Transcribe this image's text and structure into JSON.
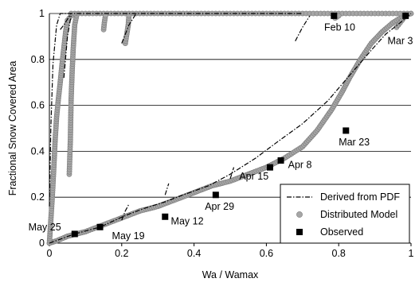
{
  "chart_data": {
    "type": "scatter",
    "xlabel": "Wa / Wamax",
    "ylabel": "Fractional Snow Covered Area",
    "xlim": [
      0,
      1
    ],
    "ylim": [
      0,
      1
    ],
    "x_ticks": [
      "0",
      "0.2",
      "0.4",
      "0.6",
      "0.8",
      "1"
    ],
    "y_ticks": [
      "0",
      "0.2",
      "0.4",
      "0.6",
      "0.8",
      "1"
    ],
    "grid": "horizontal",
    "legend_position": "bottom-right",
    "series": [
      {
        "name": "Derived from PDF",
        "style": "dash-dot line",
        "color": "#000000",
        "segments": [
          [
            [
              0,
              0.16
            ],
            [
              0.004,
              0.5
            ],
            [
              0.01,
              0.78
            ],
            [
              0.02,
              0.95
            ],
            [
              0.03,
              1.0
            ],
            [
              0.7,
              1.0
            ]
          ],
          [
            [
              0.03,
              0.93
            ],
            [
              0.04,
              0.95
            ],
            [
              0.06,
              1.0
            ]
          ],
          [
            [
              0.04,
              0.72
            ],
            [
              0.05,
              0.9
            ],
            [
              0.06,
              0.99
            ]
          ],
          [
            [
              0.2,
              0.87
            ],
            [
              0.22,
              0.95
            ],
            [
              0.24,
              1.0
            ]
          ],
          [
            [
              0.68,
              0.88
            ],
            [
              0.7,
              0.94
            ],
            [
              0.72,
              0.99
            ]
          ],
          [
            [
              0.0,
              0.0
            ],
            [
              0.07,
              0.04
            ],
            [
              0.14,
              0.07
            ],
            [
              0.21,
              0.12
            ],
            [
              0.26,
              0.15
            ],
            [
              0.32,
              0.18
            ],
            [
              0.37,
              0.21
            ],
            [
              0.44,
              0.25
            ],
            [
              0.5,
              0.3
            ],
            [
              0.57,
              0.37
            ],
            [
              0.63,
              0.44
            ],
            [
              0.7,
              0.52
            ],
            [
              0.77,
              0.62
            ],
            [
              0.83,
              0.73
            ],
            [
              0.89,
              0.84
            ],
            [
              0.93,
              0.91
            ],
            [
              0.97,
              0.96
            ],
            [
              1.0,
              1.0
            ]
          ],
          [
            [
              0.2,
              0.1
            ],
            [
              0.21,
              0.14
            ],
            [
              0.22,
              0.17
            ]
          ],
          [
            [
              0.32,
              0.21
            ],
            [
              0.33,
              0.26
            ]
          ],
          [
            [
              0.5,
              0.28
            ],
            [
              0.51,
              0.33
            ]
          ]
        ]
      },
      {
        "name": "Distributed Model",
        "style": "gray circles",
        "color": "#a6a6a6",
        "curves": {
          "main": [
            [
              0,
              0
            ],
            [
              0.02,
              0.01
            ],
            [
              0.05,
              0.03
            ],
            [
              0.1,
              0.05
            ],
            [
              0.15,
              0.08
            ],
            [
              0.2,
              0.11
            ],
            [
              0.25,
              0.14
            ],
            [
              0.3,
              0.16
            ],
            [
              0.35,
              0.19
            ],
            [
              0.4,
              0.22
            ],
            [
              0.45,
              0.25
            ],
            [
              0.5,
              0.27
            ],
            [
              0.55,
              0.3
            ],
            [
              0.6,
              0.33
            ],
            [
              0.65,
              0.37
            ],
            [
              0.7,
              0.42
            ],
            [
              0.74,
              0.49
            ],
            [
              0.78,
              0.58
            ],
            [
              0.81,
              0.66
            ],
            [
              0.83,
              0.72
            ],
            [
              0.86,
              0.8
            ],
            [
              0.89,
              0.87
            ],
            [
              0.92,
              0.92
            ],
            [
              0.95,
              0.96
            ],
            [
              0.98,
              0.99
            ],
            [
              1.0,
              1.0
            ]
          ],
          "left_rise": [
            [
              0.0,
              0.0
            ],
            [
              0.004,
              0.1
            ],
            [
              0.008,
              0.2
            ],
            [
              0.012,
              0.32
            ],
            [
              0.016,
              0.45
            ],
            [
              0.02,
              0.55
            ],
            [
              0.025,
              0.63
            ],
            [
              0.03,
              0.7
            ],
            [
              0.035,
              0.78
            ],
            [
              0.04,
              0.85
            ],
            [
              0.045,
              0.92
            ],
            [
              0.05,
              0.97
            ],
            [
              0.06,
              0.99
            ]
          ],
          "gap_band": [
            [
              0.055,
              0.3
            ],
            [
              0.058,
              0.45
            ],
            [
              0.06,
              0.62
            ],
            [
              0.063,
              0.75
            ],
            [
              0.066,
              0.85
            ],
            [
              0.07,
              0.95
            ],
            [
              0.075,
              0.99
            ]
          ],
          "top": [
            [
              0.06,
              1.0
            ],
            [
              0.1,
              1.0
            ],
            [
              0.15,
              1.0
            ],
            [
              0.2,
              1.0
            ],
            [
              0.25,
              1.0
            ],
            [
              0.3,
              1.0
            ],
            [
              0.35,
              1.0
            ],
            [
              0.4,
              1.0
            ],
            [
              0.45,
              1.0
            ],
            [
              0.5,
              1.0
            ],
            [
              0.55,
              1.0
            ],
            [
              0.6,
              1.0
            ],
            [
              0.65,
              1.0
            ],
            [
              0.7,
              1.0
            ],
            [
              0.75,
              1.0
            ],
            [
              0.8,
              1.0
            ],
            [
              0.85,
              1.0
            ],
            [
              0.9,
              1.0
            ],
            [
              0.95,
              1.0
            ],
            [
              1.0,
              1.0
            ]
          ],
          "drop_018": [
            [
              0.15,
              0.93
            ],
            [
              0.152,
              0.96
            ],
            [
              0.155,
              0.99
            ]
          ],
          "drop_021": [
            [
              0.21,
              0.87
            ],
            [
              0.214,
              0.91
            ],
            [
              0.218,
              0.95
            ],
            [
              0.22,
              0.99
            ]
          ],
          "drop_079": [
            [
              0.79,
              0.98
            ],
            [
              0.8,
              0.99
            ]
          ],
          "drop_097": [
            [
              0.96,
              0.94
            ],
            [
              0.97,
              0.96
            ],
            [
              0.98,
              0.98
            ]
          ]
        }
      },
      {
        "name": "Observed",
        "style": "black squares",
        "color": "#000000",
        "points": [
          {
            "label": "Feb 10",
            "x": 0.787,
            "y": 0.99
          },
          {
            "label": "Mar 3",
            "x": 0.985,
            "y": 0.99
          },
          {
            "label": "Mar 23",
            "x": 0.82,
            "y": 0.49
          },
          {
            "label": "Apr 8",
            "x": 0.64,
            "y": 0.36
          },
          {
            "label": "Apr 15",
            "x": 0.61,
            "y": 0.33
          },
          {
            "label": "Apr 29",
            "x": 0.46,
            "y": 0.21
          },
          {
            "label": "May 12",
            "x": 0.32,
            "y": 0.115
          },
          {
            "label": "May 19",
            "x": 0.14,
            "y": 0.07
          },
          {
            "label": "May 25",
            "x": 0.07,
            "y": 0.04
          }
        ]
      }
    ],
    "annotations": [
      {
        "text": "Feb 10",
        "x": 0.76,
        "y": 0.94,
        "anchor": "start"
      },
      {
        "text": "Mar 3",
        "x": 0.935,
        "y": 0.88,
        "anchor": "start"
      },
      {
        "text": "Mar 23",
        "x": 0.8,
        "y": 0.44,
        "anchor": "start"
      },
      {
        "text": "Apr 8",
        "x": 0.66,
        "y": 0.34,
        "anchor": "start"
      },
      {
        "text": "Apr 15",
        "x": 0.525,
        "y": 0.29,
        "anchor": "start"
      },
      {
        "text": "Apr 29",
        "x": 0.43,
        "y": 0.16,
        "anchor": "start"
      },
      {
        "text": "May 12",
        "x": 0.336,
        "y": 0.095,
        "anchor": "start"
      },
      {
        "text": "May 19",
        "x": 0.173,
        "y": 0.032,
        "anchor": "start"
      },
      {
        "text": "May 25",
        "x": -0.058,
        "y": 0.07,
        "anchor": "start"
      }
    ]
  }
}
